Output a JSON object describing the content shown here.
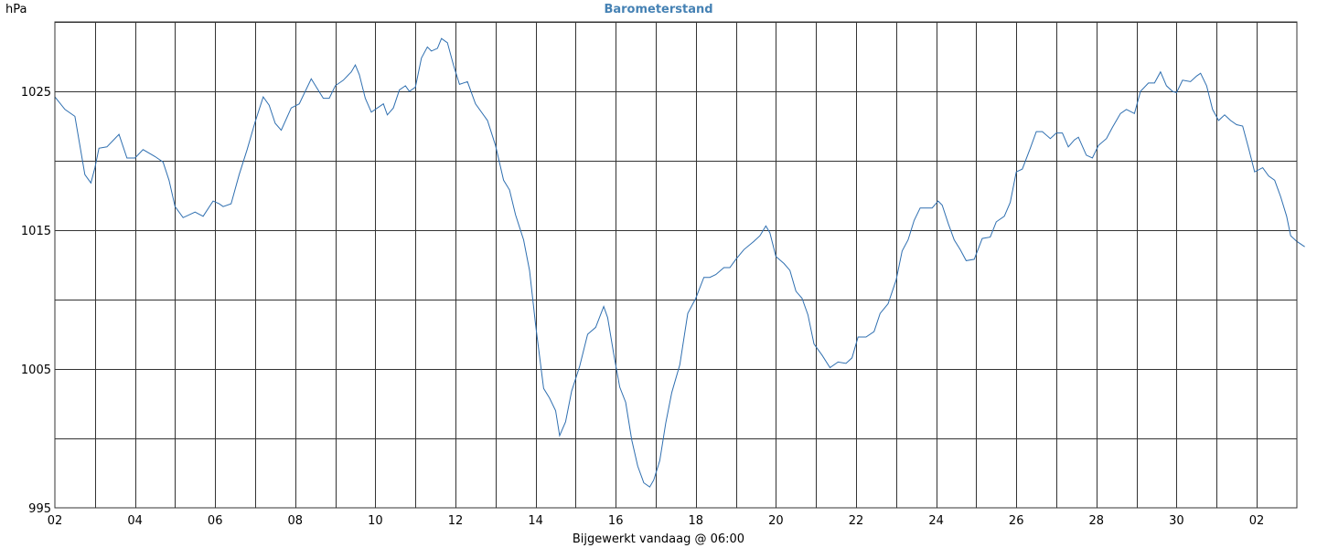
{
  "chart_data": {
    "type": "line",
    "title": "Barometerstand",
    "unit_label": "hPa",
    "xlabel": "Bijgewerkt vandaag @ 06:00",
    "ylim": [
      995,
      1030
    ],
    "y_ticks": [
      995,
      1005,
      1015,
      1025
    ],
    "y_gridlines": [
      1000,
      1005,
      1010,
      1015,
      1020,
      1025,
      1030
    ],
    "x_range": [
      0,
      31
    ],
    "x_tick_labels": [
      {
        "x": 0,
        "label": "02"
      },
      {
        "x": 2,
        "label": "04"
      },
      {
        "x": 4,
        "label": "06"
      },
      {
        "x": 6,
        "label": "08"
      },
      {
        "x": 8,
        "label": "10"
      },
      {
        "x": 10,
        "label": "12"
      },
      {
        "x": 12,
        "label": "14"
      },
      {
        "x": 14,
        "label": "16"
      },
      {
        "x": 16,
        "label": "18"
      },
      {
        "x": 18,
        "label": "20"
      },
      {
        "x": 20,
        "label": "22"
      },
      {
        "x": 22,
        "label": "24"
      },
      {
        "x": 24,
        "label": "26"
      },
      {
        "x": 26,
        "label": "28"
      },
      {
        "x": 28,
        "label": "30"
      },
      {
        "x": 30,
        "label": "02"
      }
    ],
    "grid": true,
    "color": "#2f6fb0",
    "series": [
      {
        "points": [
          [
            0.0,
            1024.6
          ],
          [
            0.25,
            1023.7
          ],
          [
            0.5,
            1023.2
          ],
          [
            0.75,
            1019.0
          ],
          [
            0.9,
            1018.4
          ],
          [
            1.0,
            1019.5
          ],
          [
            1.1,
            1020.9
          ],
          [
            1.3,
            1021.0
          ],
          [
            1.6,
            1021.9
          ],
          [
            1.8,
            1020.2
          ],
          [
            2.0,
            1020.2
          ],
          [
            2.2,
            1020.8
          ],
          [
            2.5,
            1020.3
          ],
          [
            2.7,
            1019.9
          ],
          [
            2.85,
            1018.6
          ],
          [
            3.0,
            1016.7
          ],
          [
            3.2,
            1015.9
          ],
          [
            3.5,
            1016.3
          ],
          [
            3.7,
            1016.0
          ],
          [
            3.95,
            1017.1
          ],
          [
            4.1,
            1016.9
          ],
          [
            4.2,
            1016.7
          ],
          [
            4.4,
            1016.9
          ],
          [
            4.6,
            1019.0
          ],
          [
            4.8,
            1020.8
          ],
          [
            5.0,
            1022.8
          ],
          [
            5.2,
            1024.6
          ],
          [
            5.35,
            1024.0
          ],
          [
            5.5,
            1022.7
          ],
          [
            5.65,
            1022.2
          ],
          [
            5.9,
            1023.8
          ],
          [
            6.1,
            1024.1
          ],
          [
            6.4,
            1025.9
          ],
          [
            6.55,
            1025.2
          ],
          [
            6.7,
            1024.5
          ],
          [
            6.85,
            1024.5
          ],
          [
            7.0,
            1025.4
          ],
          [
            7.2,
            1025.8
          ],
          [
            7.4,
            1026.4
          ],
          [
            7.5,
            1026.9
          ],
          [
            7.6,
            1026.2
          ],
          [
            7.75,
            1024.5
          ],
          [
            7.9,
            1023.5
          ],
          [
            8.2,
            1024.1
          ],
          [
            8.3,
            1023.3
          ],
          [
            8.45,
            1023.8
          ],
          [
            8.6,
            1025.1
          ],
          [
            8.75,
            1025.4
          ],
          [
            8.85,
            1025.0
          ],
          [
            9.0,
            1025.3
          ],
          [
            9.15,
            1027.4
          ],
          [
            9.3,
            1028.2
          ],
          [
            9.4,
            1027.9
          ],
          [
            9.55,
            1028.1
          ],
          [
            9.65,
            1028.8
          ],
          [
            9.8,
            1028.5
          ],
          [
            9.95,
            1026.9
          ],
          [
            10.1,
            1025.5
          ],
          [
            10.3,
            1025.7
          ],
          [
            10.5,
            1024.1
          ],
          [
            10.8,
            1022.9
          ],
          [
            11.0,
            1021.1
          ],
          [
            11.2,
            1018.6
          ],
          [
            11.35,
            1017.9
          ],
          [
            11.5,
            1016.1
          ],
          [
            11.7,
            1014.3
          ],
          [
            11.85,
            1012.1
          ],
          [
            12.0,
            1008.2
          ],
          [
            12.2,
            1003.6
          ],
          [
            12.35,
            1002.9
          ],
          [
            12.5,
            1002.0
          ],
          [
            12.6,
            1000.2
          ],
          [
            12.75,
            1001.2
          ],
          [
            12.9,
            1003.4
          ],
          [
            13.1,
            1005.2
          ],
          [
            13.3,
            1007.5
          ],
          [
            13.5,
            1008.0
          ],
          [
            13.7,
            1009.5
          ],
          [
            13.8,
            1008.7
          ],
          [
            13.95,
            1006.1
          ],
          [
            14.1,
            1003.7
          ],
          [
            14.25,
            1002.6
          ],
          [
            14.4,
            999.9
          ],
          [
            14.55,
            998.0
          ],
          [
            14.7,
            996.8
          ],
          [
            14.85,
            996.5
          ],
          [
            14.95,
            997.0
          ],
          [
            15.1,
            998.4
          ],
          [
            15.25,
            1001.1
          ],
          [
            15.4,
            1003.3
          ],
          [
            15.6,
            1005.3
          ],
          [
            15.8,
            1009.0
          ],
          [
            16.0,
            1010.1
          ],
          [
            16.2,
            1011.6
          ],
          [
            16.35,
            1011.6
          ],
          [
            16.5,
            1011.8
          ],
          [
            16.7,
            1012.3
          ],
          [
            16.85,
            1012.3
          ],
          [
            17.0,
            1012.9
          ],
          [
            17.2,
            1013.6
          ],
          [
            17.45,
            1014.2
          ],
          [
            17.6,
            1014.6
          ],
          [
            17.75,
            1015.3
          ],
          [
            17.85,
            1014.8
          ],
          [
            18.0,
            1013.1
          ],
          [
            18.2,
            1012.6
          ],
          [
            18.35,
            1012.1
          ],
          [
            18.5,
            1010.6
          ],
          [
            18.65,
            1010.1
          ],
          [
            18.8,
            1008.9
          ],
          [
            18.95,
            1006.8
          ],
          [
            19.15,
            1006.0
          ],
          [
            19.35,
            1005.1
          ],
          [
            19.55,
            1005.5
          ],
          [
            19.75,
            1005.4
          ],
          [
            19.9,
            1005.8
          ],
          [
            20.05,
            1007.3
          ],
          [
            20.25,
            1007.3
          ],
          [
            20.45,
            1007.7
          ],
          [
            20.6,
            1009.0
          ],
          [
            20.8,
            1009.7
          ],
          [
            21.0,
            1011.4
          ],
          [
            21.15,
            1013.5
          ],
          [
            21.3,
            1014.3
          ],
          [
            21.45,
            1015.7
          ],
          [
            21.6,
            1016.6
          ],
          [
            21.75,
            1016.6
          ],
          [
            21.9,
            1016.6
          ],
          [
            22.05,
            1017.1
          ],
          [
            22.15,
            1016.8
          ],
          [
            22.3,
            1015.5
          ],
          [
            22.45,
            1014.3
          ],
          [
            22.6,
            1013.6
          ],
          [
            22.75,
            1012.8
          ],
          [
            22.95,
            1012.9
          ],
          [
            23.15,
            1014.4
          ],
          [
            23.35,
            1014.5
          ],
          [
            23.5,
            1015.6
          ],
          [
            23.7,
            1016.0
          ],
          [
            23.85,
            1017.0
          ],
          [
            24.0,
            1019.2
          ],
          [
            24.15,
            1019.4
          ],
          [
            24.35,
            1020.9
          ],
          [
            24.5,
            1022.1
          ],
          [
            24.65,
            1022.1
          ],
          [
            24.85,
            1021.6
          ],
          [
            25.0,
            1022.0
          ],
          [
            25.15,
            1022.0
          ],
          [
            25.3,
            1021.0
          ],
          [
            25.45,
            1021.5
          ],
          [
            25.55,
            1021.7
          ],
          [
            25.75,
            1020.4
          ],
          [
            25.9,
            1020.2
          ],
          [
            26.05,
            1021.1
          ],
          [
            26.25,
            1021.6
          ],
          [
            26.4,
            1022.4
          ],
          [
            26.6,
            1023.4
          ],
          [
            26.75,
            1023.7
          ],
          [
            26.95,
            1023.4
          ],
          [
            27.1,
            1025.0
          ],
          [
            27.3,
            1025.6
          ],
          [
            27.45,
            1025.6
          ],
          [
            27.6,
            1026.4
          ],
          [
            27.75,
            1025.4
          ],
          [
            27.9,
            1025.0
          ],
          [
            28.0,
            1024.9
          ],
          [
            28.15,
            1025.8
          ],
          [
            28.35,
            1025.7
          ],
          [
            28.5,
            1026.1
          ],
          [
            28.6,
            1026.3
          ],
          [
            28.75,
            1025.4
          ],
          [
            28.9,
            1023.7
          ],
          [
            29.05,
            1022.9
          ],
          [
            29.2,
            1023.3
          ],
          [
            29.35,
            1022.9
          ],
          [
            29.5,
            1022.6
          ],
          [
            29.65,
            1022.5
          ],
          [
            29.8,
            1020.9
          ],
          [
            29.95,
            1019.2
          ],
          [
            30.15,
            1019.5
          ],
          [
            30.3,
            1018.9
          ],
          [
            30.45,
            1018.6
          ],
          [
            30.6,
            1017.4
          ],
          [
            30.75,
            1016.0
          ],
          [
            30.85,
            1014.6
          ],
          [
            31.0,
            1014.2
          ],
          [
            31.2,
            1013.8
          ]
        ]
      }
    ]
  }
}
